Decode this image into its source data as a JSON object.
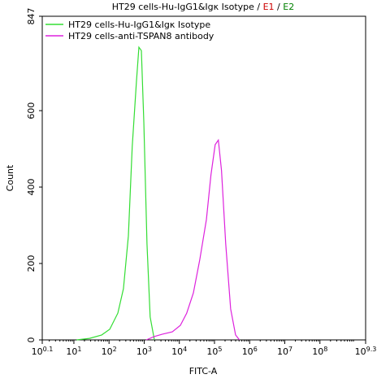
{
  "chart_data": {
    "type": "line",
    "title": [
      {
        "text": "HT29 cells-Hu-IgG1&Igκ Isotype / ",
        "color": "#000000"
      },
      {
        "text": "E1",
        "color": "#cc0000"
      },
      {
        "text": " / ",
        "color": "#000000"
      },
      {
        "text": "E2",
        "color": "#008000"
      }
    ],
    "xlabel": "FITC-A",
    "ylabel": "Count",
    "xscale": "log",
    "xlim": [
      1.2589,
      1995262315
    ],
    "ylim": [
      0,
      847
    ],
    "xticks": [
      {
        "value": 1.2589,
        "label": "10",
        "exponent": "0.1"
      },
      {
        "value": 10,
        "label": "10",
        "exponent": "1"
      },
      {
        "value": 100,
        "label": "10",
        "exponent": "2"
      },
      {
        "value": 1000,
        "label": "10",
        "exponent": "3"
      },
      {
        "value": 10000,
        "label": "10",
        "exponent": "4"
      },
      {
        "value": 100000,
        "label": "10",
        "exponent": "5"
      },
      {
        "value": 1000000,
        "label": "10",
        "exponent": "6"
      },
      {
        "value": 10000000,
        "label": "10",
        "exponent": "7"
      },
      {
        "value": 100000000,
        "label": "10",
        "exponent": "8"
      },
      {
        "value": 1995262315,
        "label": "10",
        "exponent": "9.3"
      }
    ],
    "yticks": [
      0,
      200,
      400,
      600,
      847
    ],
    "legend": "upper left",
    "series": [
      {
        "name": "HT29 cells-Hu-IgG1&Igκ Isotype",
        "color": "#33dd33",
        "x": [
          12,
          28,
          62,
          105,
          178,
          257,
          355,
          457,
          603,
          708,
          832,
          977,
          1202,
          1479,
          1950
        ],
        "values": [
          0,
          4,
          13,
          28,
          70,
          134,
          272,
          506,
          677,
          766,
          757,
          570,
          251,
          60,
          0
        ]
      },
      {
        "name": "HT29 cells-anti-TSPAN8 antibody",
        "color": "#dd22dd",
        "x": [
          1148,
          1950,
          3311,
          6310,
          10700,
          16200,
          25100,
          38000,
          58900,
          79400,
          104700,
          128800,
          158500,
          208900,
          288400,
          398100,
          512900
        ],
        "values": [
          0,
          9,
          15,
          21,
          38,
          70,
          123,
          209,
          315,
          432,
          511,
          523,
          443,
          251,
          81,
          13,
          0
        ]
      }
    ]
  }
}
